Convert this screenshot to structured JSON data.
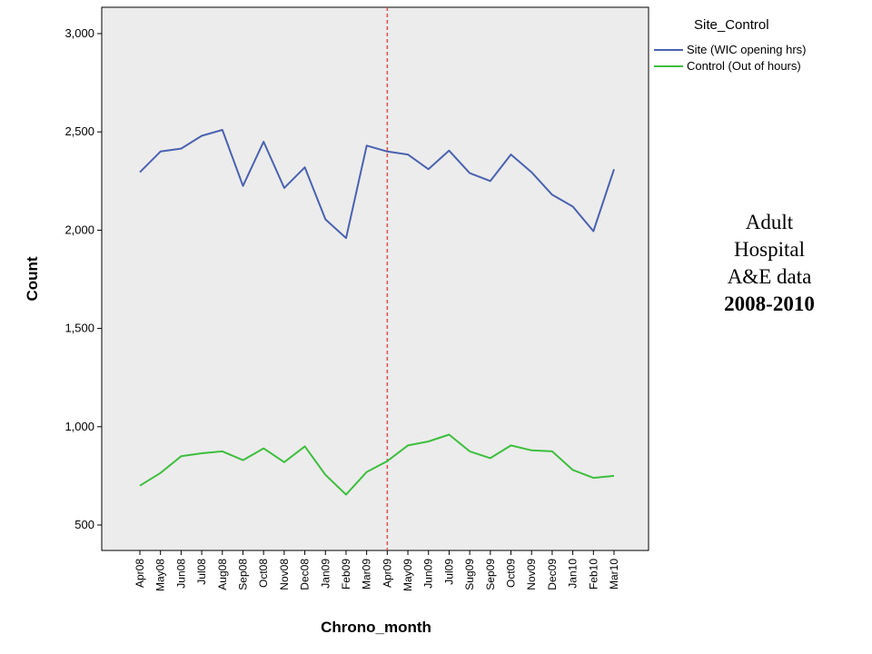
{
  "chart_data": {
    "type": "line",
    "xlabel": "Chrono_month",
    "ylabel": "Count",
    "categories": [
      "Apr08",
      "May08",
      "Jun08",
      "Jul08",
      "Aug08",
      "Sep08",
      "Oct08",
      "Nov08",
      "Dec08",
      "Jan09",
      "Feb09",
      "Mar09",
      "Apr09",
      "May09",
      "Jun09",
      "Jul09",
      "Sug09",
      "Sep09",
      "Oct09",
      "Nov09",
      "Dec09",
      "Jan10",
      "Feb10",
      "Mar10"
    ],
    "ylim": [
      400,
      3100
    ],
    "yticks": [
      500,
      1000,
      1500,
      2000,
      2500,
      3000
    ],
    "ytick_labels": [
      "500",
      "1,000",
      "1,500",
      "2,000",
      "2,500",
      "3,000"
    ],
    "grid": false,
    "legend": {
      "title": "Site_Control",
      "position": "top-right, outside plot"
    },
    "series": [
      {
        "name": "Site (WIC opening hrs)",
        "color": "#4a62b0",
        "values": [
          2295,
          2400,
          2415,
          2480,
          2510,
          2225,
          2450,
          2215,
          2320,
          2055,
          1960,
          2430,
          2400,
          2385,
          2310,
          2405,
          2290,
          2250,
          2385,
          2295,
          2180,
          2120,
          1995,
          2310
        ]
      },
      {
        "name": "Control (Out of hours)",
        "color": "#3dbf3d",
        "values": [
          700,
          765,
          850,
          865,
          875,
          830,
          890,
          820,
          900,
          755,
          655,
          770,
          825,
          905,
          925,
          960,
          875,
          840,
          905,
          880,
          875,
          780,
          740,
          750
        ]
      }
    ],
    "reference_line": {
      "category": "Apr09",
      "color": "#e05050",
      "style": "dashed"
    }
  },
  "side_note": {
    "line1": "Adult",
    "line2": "Hospital",
    "line3": "A&E data",
    "line4": "2008-2010"
  }
}
